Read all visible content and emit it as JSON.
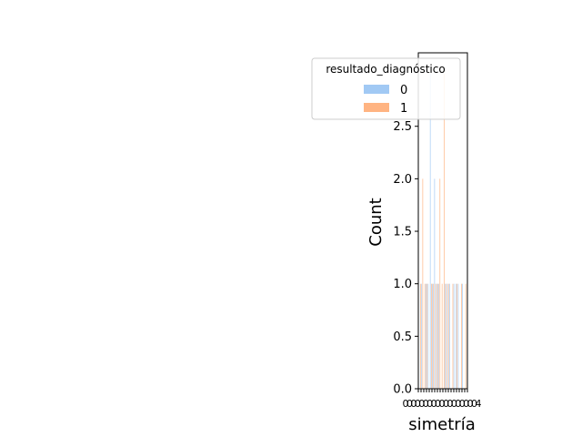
{
  "chart_data": {
    "type": "bar",
    "title": "",
    "xlabel": "simetría",
    "ylabel": "Count",
    "ylim": [
      0,
      3.2
    ],
    "yticks": [
      "0.0",
      "0.5",
      "1.0",
      "1.5",
      "2.0",
      "2.5"
    ],
    "xtick_labels": [
      "0",
      "0",
      "0",
      "0",
      "0",
      "0",
      "0",
      "0",
      "0",
      "0",
      "0",
      "0",
      "0",
      "0",
      "0",
      "0",
      "0",
      "0",
      "4"
    ],
    "grid": false,
    "legend": {
      "title": "resultado_diagnóstico",
      "placement": "top-right",
      "entries": [
        {
          "label": "0",
          "color": "#a1c9f4"
        },
        {
          "label": "1",
          "color": "#ffb482"
        }
      ]
    },
    "series": [
      {
        "label": "0",
        "color": "#a1c9f4",
        "values": [
          0,
          1,
          0,
          1,
          1,
          3,
          1,
          2,
          1,
          1,
          0,
          0,
          1,
          1,
          1,
          0,
          1,
          1,
          1,
          0,
          1,
          0
        ]
      },
      {
        "label": "1",
        "color": "#ffb482",
        "values": [
          1,
          2,
          1,
          1,
          0,
          1,
          1,
          1,
          1,
          2,
          1,
          3,
          1,
          1,
          0,
          1,
          0,
          1,
          0,
          1,
          0,
          1
        ]
      }
    ]
  }
}
